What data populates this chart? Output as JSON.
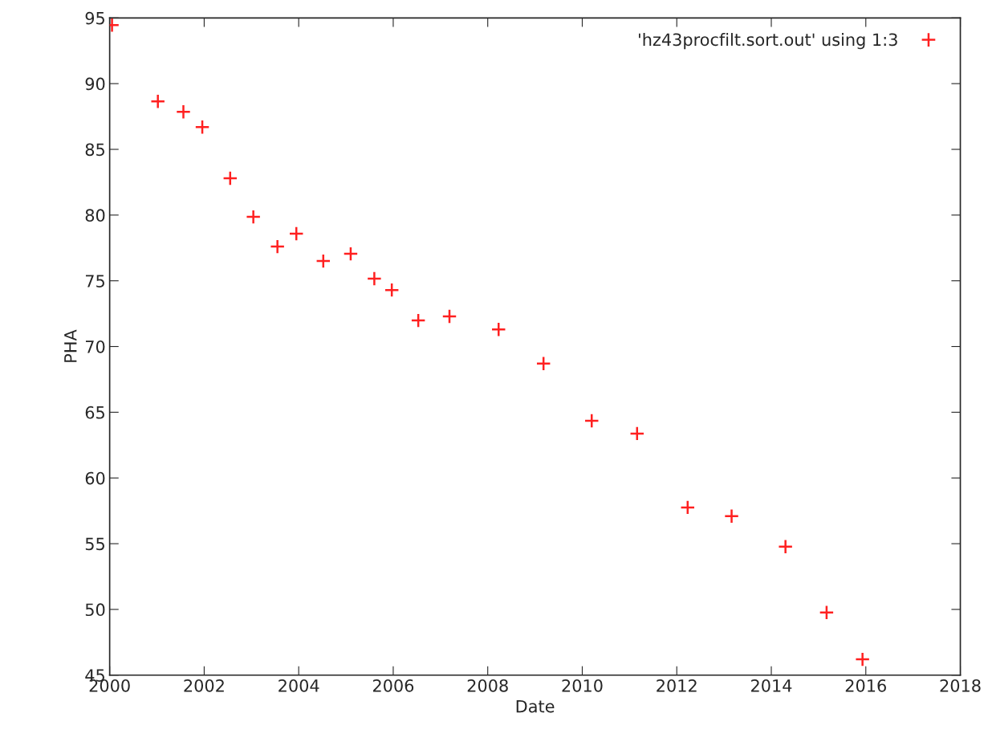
{
  "chart_data": {
    "type": "scatter",
    "xlabel": "Date",
    "ylabel": "PHA",
    "xlim": [
      2000,
      2018
    ],
    "xticks": [
      2000,
      2002,
      2004,
      2006,
      2008,
      2010,
      2012,
      2014,
      2016,
      2018
    ],
    "ylim": [
      45,
      95
    ],
    "yticks": [
      45,
      50,
      55,
      60,
      65,
      70,
      75,
      80,
      85,
      90,
      95
    ],
    "grid": false,
    "legend": "top right",
    "marker": "cross",
    "series": [
      {
        "name": "'hz43procfilt.sort.out' using 1:3",
        "color": "#ff2020",
        "x": [
          2000.05,
          2001.02,
          2001.56,
          2001.96,
          2002.55,
          2003.04,
          2003.55,
          2003.95,
          2004.52,
          2005.1,
          2005.6,
          2005.97,
          2006.53,
          2007.19,
          2008.23,
          2009.18,
          2010.2,
          2011.16,
          2012.23,
          2013.16,
          2014.3,
          2015.17,
          2015.93
        ],
        "values": [
          94.45,
          88.65,
          87.85,
          86.7,
          82.8,
          79.86,
          77.6,
          78.58,
          76.5,
          77.05,
          75.16,
          74.3,
          71.98,
          72.29,
          71.3,
          68.7,
          64.35,
          63.38,
          57.76,
          57.1,
          54.77,
          49.76,
          46.2
        ]
      }
    ]
  }
}
